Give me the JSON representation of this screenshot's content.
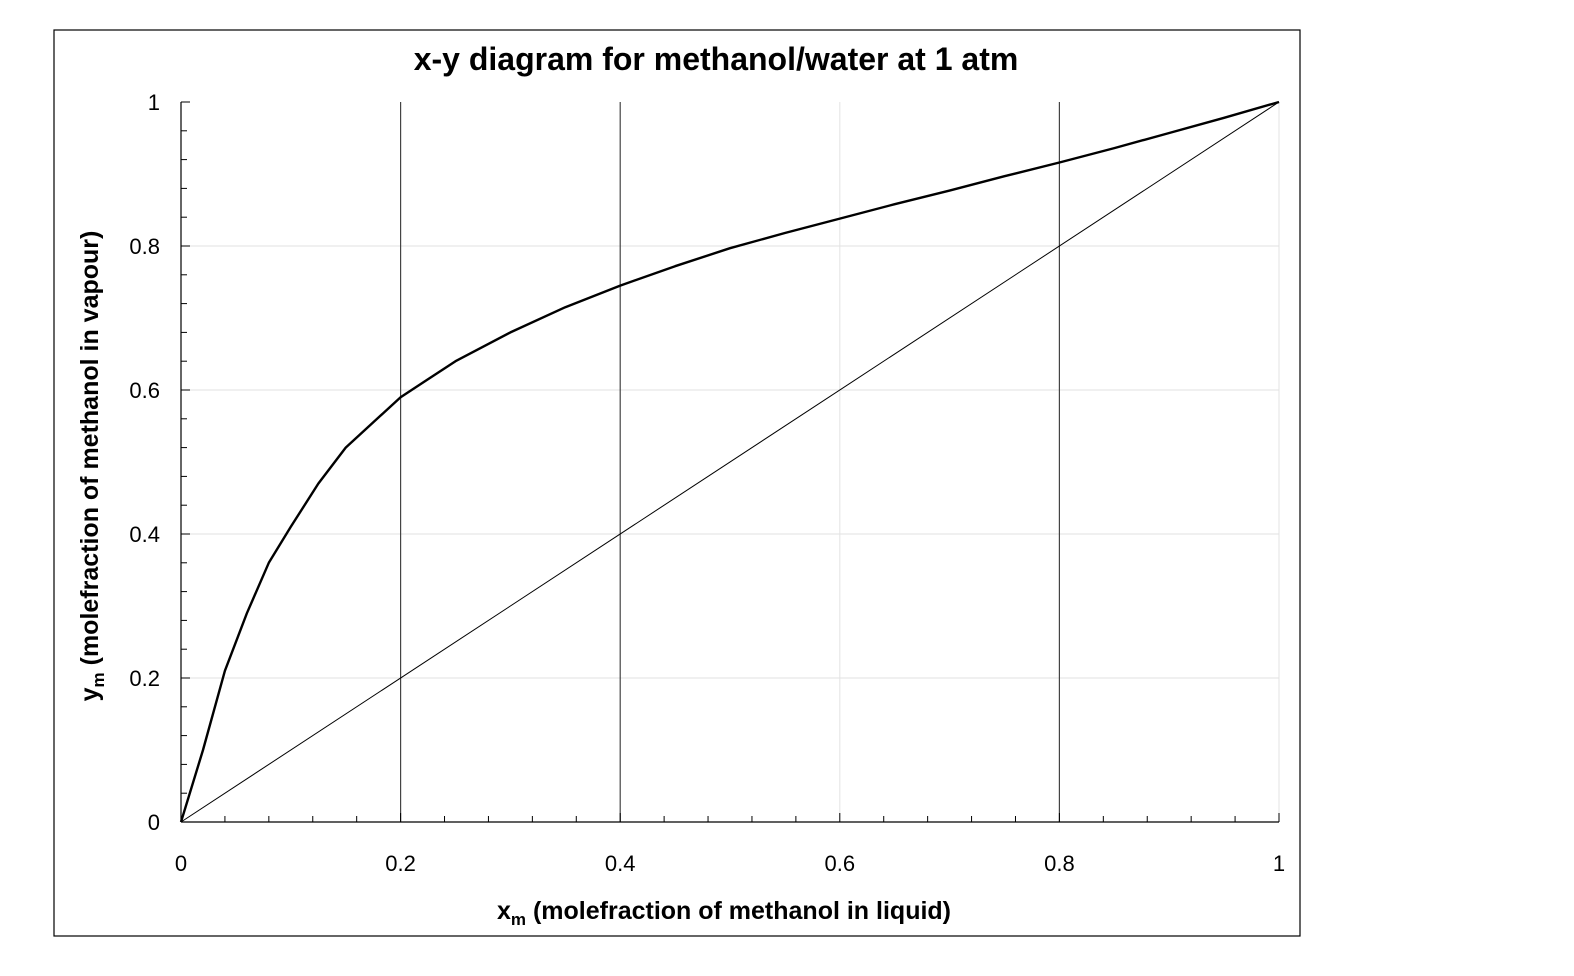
{
  "chart_data": {
    "type": "line",
    "title": "x-y diagram for methanol/water at 1 atm",
    "xlabel": {
      "main": "x",
      "sub": "m",
      "rest": " (molefraction of methanol in liquid)"
    },
    "ylabel": {
      "main": "y",
      "sub": "m",
      "rest": " (molefraction of methanol in vapour)"
    },
    "xlim": [
      0,
      1
    ],
    "ylim": [
      0,
      1
    ],
    "x_ticks": [
      "0",
      "0.2",
      "0.4",
      "0.6",
      "0.8",
      "1"
    ],
    "y_ticks": [
      "0",
      "0.2",
      "0.4",
      "0.6",
      "0.8",
      "1"
    ],
    "grid": true,
    "legend": "none",
    "series": [
      {
        "x": [
          0,
          0.02,
          0.04,
          0.06,
          0.08,
          0.1,
          0.125,
          0.15,
          0.2,
          0.25,
          0.3,
          0.35,
          0.4,
          0.45,
          0.5,
          0.55,
          0.6,
          0.65,
          0.7,
          0.75,
          0.8,
          0.85,
          0.9,
          0.95,
          1.0
        ],
        "y": [
          0,
          0.1,
          0.21,
          0.29,
          0.36,
          0.41,
          0.47,
          0.52,
          0.59,
          0.64,
          0.68,
          0.715,
          0.745,
          0.772,
          0.797,
          0.818,
          0.838,
          0.858,
          0.877,
          0.897,
          0.916,
          0.936,
          0.957,
          0.978,
          1.0
        ],
        "color": "#000000"
      },
      {
        "x": [
          0,
          1
        ],
        "y": [
          0,
          1
        ],
        "color": "#000000"
      }
    ]
  }
}
